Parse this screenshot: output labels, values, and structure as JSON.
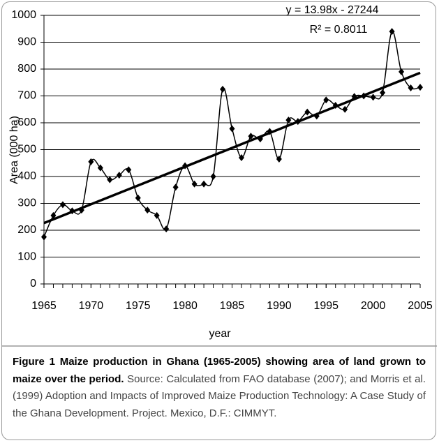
{
  "chart_data": {
    "type": "line",
    "y_label": "Area (000 ha)",
    "x_label": "year",
    "x": [
      1965,
      1966,
      1967,
      1968,
      1969,
      1970,
      1971,
      1972,
      1973,
      1974,
      1975,
      1976,
      1977,
      1978,
      1979,
      1980,
      1981,
      1982,
      1983,
      1984,
      1985,
      1986,
      1987,
      1988,
      1989,
      1990,
      1991,
      1992,
      1993,
      1994,
      1995,
      1996,
      1997,
      1998,
      1999,
      2000,
      2001,
      2002,
      2003,
      2004,
      2005
    ],
    "series": [
      {
        "color": "#000000",
        "values": [
          175,
          255,
          295,
          272,
          275,
          455,
          432,
          388,
          405,
          425,
          320,
          275,
          255,
          205,
          360,
          440,
          372,
          372,
          400,
          725,
          578,
          470,
          550,
          540,
          568,
          465,
          610,
          605,
          640,
          625,
          685,
          665,
          650,
          698,
          700,
          695,
          712,
          940,
          790,
          730,
          732
        ]
      }
    ],
    "trendline": {
      "equation": "y = 13.98x - 27244",
      "r2_label": "R² = 0.8011",
      "slope": 13.98,
      "intercept": -27244
    },
    "xlim": [
      1965,
      2005
    ],
    "xticks": [
      1965,
      1970,
      1975,
      1980,
      1985,
      1990,
      1995,
      2000,
      2005
    ],
    "ylim": [
      0,
      1000
    ],
    "yticks": [
      0,
      100,
      200,
      300,
      400,
      500,
      600,
      700,
      800,
      900,
      1000
    ],
    "grid": true
  },
  "caption": {
    "label": "Figure 1",
    "title": "Maize production in Ghana (1965-2005) showing area of land grown to maize over the period.",
    "text": "Source: Calculated from FAO database (2007); and Morris et al. (1999) Adoption and Impacts of Improved Maize Production Technology: A Case Study of the Ghana Development. Project. Mexico, D.F.: CIMMYT."
  }
}
